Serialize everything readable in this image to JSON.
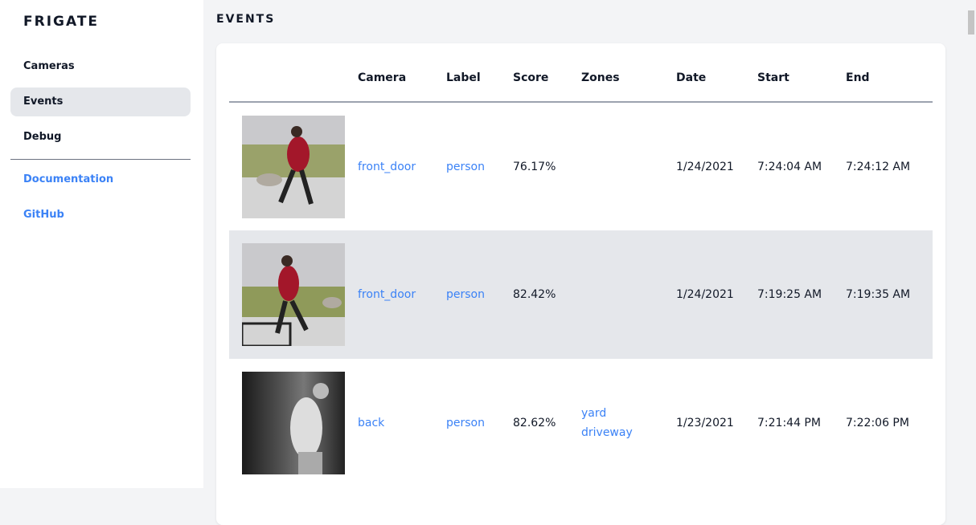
{
  "sidebar": {
    "brand": "FRIGATE",
    "items": [
      {
        "label": "Cameras"
      },
      {
        "label": "Events"
      },
      {
        "label": "Debug"
      }
    ],
    "links": [
      {
        "label": "Documentation"
      },
      {
        "label": "GitHub"
      }
    ]
  },
  "page": {
    "title": "EVENTS"
  },
  "table": {
    "headers": [
      "",
      "Camera",
      "Label",
      "Score",
      "Zones",
      "Date",
      "Start",
      "End"
    ],
    "rows": [
      {
        "camera": "front_door",
        "label": "person",
        "score": "76.17%",
        "zones": [
          "",
          ""
        ],
        "date": "1/24/2021",
        "start": "7:24:04 AM",
        "end": "7:24:12 AM"
      },
      {
        "camera": "front_door",
        "label": "person",
        "score": "82.42%",
        "zones": [
          "",
          ""
        ],
        "date": "1/24/2021",
        "start": "7:19:25 AM",
        "end": "7:19:35 AM"
      },
      {
        "camera": "back",
        "label": "person",
        "score": "82.62%",
        "zones": [
          "yard",
          "driveway"
        ],
        "date": "1/23/2021",
        "start": "7:21:44 PM",
        "end": "7:22:06 PM"
      }
    ]
  },
  "colors": {
    "accent": "#3b82f6",
    "active_bg": "#e5e7eb"
  }
}
